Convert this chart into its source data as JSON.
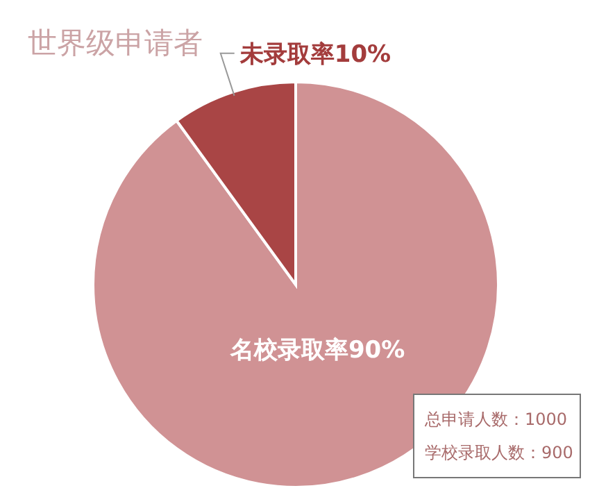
{
  "chart_data": {
    "type": "pie",
    "title": "世界级申请者",
    "categories": [
      "名校录取率",
      "未录取率"
    ],
    "values": [
      90,
      10
    ],
    "value_labels": [
      "90%",
      "10%"
    ],
    "colors": [
      "#d09294",
      "#a94545"
    ],
    "annotations": [
      "总申请人数：1000",
      "学校录取人数：900"
    ]
  }
}
